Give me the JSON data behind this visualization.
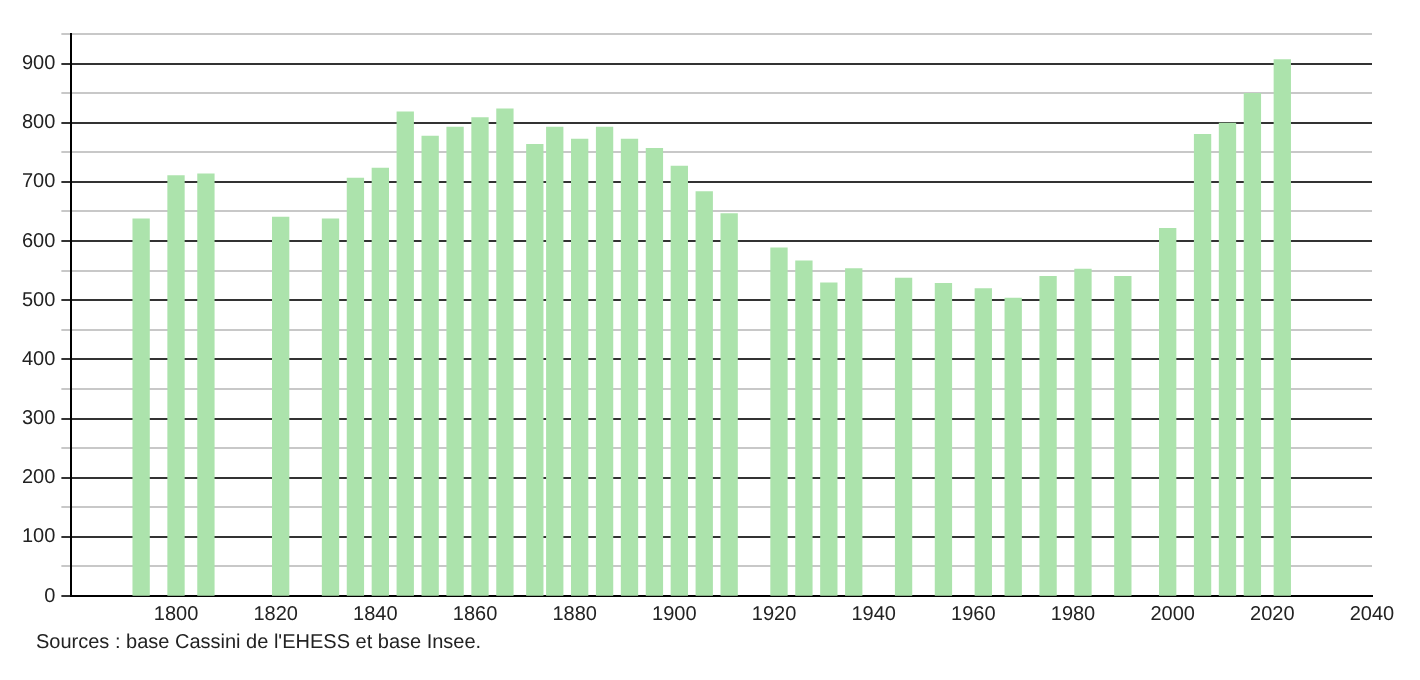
{
  "chart_data": {
    "type": "bar",
    "color": "#ace3ac",
    "x": [
      1793,
      1800,
      1806,
      1821,
      1831,
      1836,
      1841,
      1846,
      1851,
      1856,
      1861,
      1866,
      1872,
      1876,
      1881,
      1886,
      1891,
      1896,
      1901,
      1906,
      1911,
      1921,
      1926,
      1931,
      1936,
      1946,
      1954,
      1962,
      1968,
      1975,
      1982,
      1990,
      1999,
      2006,
      2011,
      2016,
      2022
    ],
    "values": [
      637,
      710,
      713,
      640,
      637,
      706,
      723,
      818,
      777,
      792,
      808,
      823,
      763,
      792,
      772,
      792,
      772,
      756,
      726,
      683,
      646,
      588,
      566,
      529,
      553,
      537,
      528,
      519,
      503,
      540,
      552,
      540,
      621,
      780,
      799,
      849,
      906
    ],
    "xlim": [
      1779,
      2040
    ],
    "xticks": [
      1800,
      1820,
      1840,
      1860,
      1880,
      1900,
      1920,
      1940,
      1960,
      1980,
      2000,
      2020,
      2040
    ],
    "ylim": [
      0,
      950
    ],
    "yticks": [
      0,
      {
        "value": 50,
        "label": null
      },
      100,
      {
        "value": 150,
        "label": null
      },
      200,
      {
        "value": 250,
        "label": null
      },
      300,
      {
        "value": 350,
        "label": null
      },
      400,
      {
        "value": 450,
        "label": null
      },
      500,
      {
        "value": 550,
        "label": null
      },
      600,
      {
        "value": 650,
        "label": null
      },
      700,
      {
        "value": 750,
        "label": null
      },
      800,
      {
        "value": 850,
        "label": null
      },
      900,
      {
        "value": 950,
        "label": null
      }
    ],
    "grid": "y",
    "legend": false,
    "annotations": [
      "Sources : base Cassini de l'EHESS et base Insee."
    ]
  }
}
